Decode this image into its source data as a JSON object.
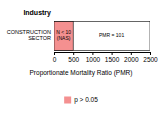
{
  "chart_data": {
    "type": "bar",
    "orientation": "horizontal",
    "ylabel": "Industry",
    "xlabel": "Proportionate Mortality Ratio (PMR)",
    "categories": [
      "CONSTRUCTION SECTOR"
    ],
    "series": [
      {
        "color": "#ffffff",
        "values": [
          2500
        ]
      },
      {
        "name": "p > 0.05",
        "color": "#f49090",
        "values": [
          500
        ]
      }
    ],
    "annotations": [
      "N < 10 (NAS)",
      "PMR = 101"
    ],
    "xlim": [
      0,
      2500
    ],
    "xticks": [
      0,
      500,
      1000,
      1500,
      2000,
      2500
    ],
    "grid": false,
    "legend": "bottom"
  }
}
